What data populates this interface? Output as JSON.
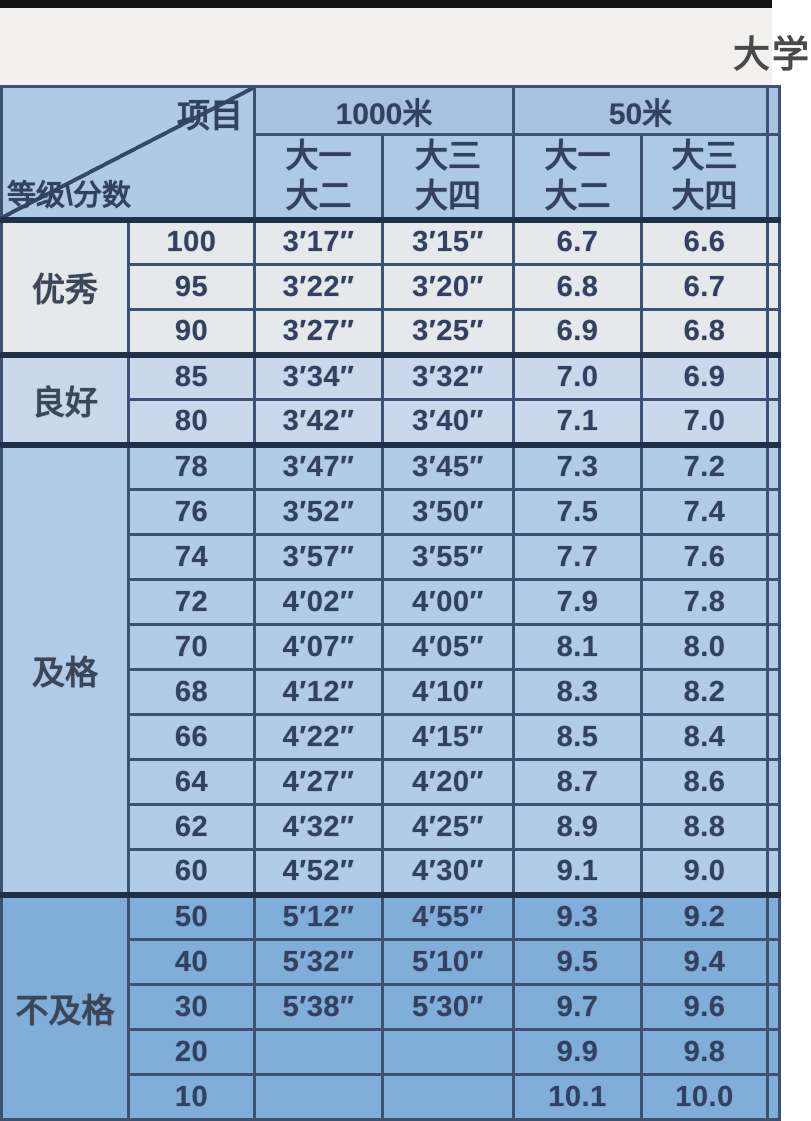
{
  "top_note": "大学",
  "colors": {
    "excellent": "#e6e9ec",
    "good": "#c9d8ea",
    "pass": "#b2cbe6",
    "fail": "#81add9",
    "header": "#aec9e5",
    "border": "#3d5273",
    "text": "#31415f"
  },
  "table": {
    "corner_top": "项目",
    "corner_bottom": "等级\\分数",
    "groups": [
      {
        "label": "1000米",
        "subcols": [
          "大一\n大二",
          "大三\n大四"
        ]
      },
      {
        "label": "50米",
        "subcols": [
          "大一\n大二",
          "大三\n大四"
        ]
      }
    ],
    "sections": [
      {
        "grade": "优秀",
        "tone": "excellent",
        "rows": [
          {
            "score": "100",
            "cells": [
              "3′17″",
              "3′15″",
              "6.7",
              "6.6"
            ]
          },
          {
            "score": "95",
            "cells": [
              "3′22″",
              "3′20″",
              "6.8",
              "6.7"
            ]
          },
          {
            "score": "90",
            "cells": [
              "3′27″",
              "3′25″",
              "6.9",
              "6.8"
            ]
          }
        ]
      },
      {
        "grade": "良好",
        "tone": "good",
        "rows": [
          {
            "score": "85",
            "cells": [
              "3′34″",
              "3′32″",
              "7.0",
              "6.9"
            ]
          },
          {
            "score": "80",
            "cells": [
              "3′42″",
              "3′40″",
              "7.1",
              "7.0"
            ]
          }
        ]
      },
      {
        "grade": "及格",
        "tone": "pass",
        "rows": [
          {
            "score": "78",
            "cells": [
              "3′47″",
              "3′45″",
              "7.3",
              "7.2"
            ]
          },
          {
            "score": "76",
            "cells": [
              "3′52″",
              "3′50″",
              "7.5",
              "7.4"
            ]
          },
          {
            "score": "74",
            "cells": [
              "3′57″",
              "3′55″",
              "7.7",
              "7.6"
            ]
          },
          {
            "score": "72",
            "cells": [
              "4′02″",
              "4′00″",
              "7.9",
              "7.8"
            ]
          },
          {
            "score": "70",
            "cells": [
              "4′07″",
              "4′05″",
              "8.1",
              "8.0"
            ]
          },
          {
            "score": "68",
            "cells": [
              "4′12″",
              "4′10″",
              "8.3",
              "8.2"
            ]
          },
          {
            "score": "66",
            "cells": [
              "4′22″",
              "4′15″",
              "8.5",
              "8.4"
            ]
          },
          {
            "score": "64",
            "cells": [
              "4′27″",
              "4′20″",
              "8.7",
              "8.6"
            ]
          },
          {
            "score": "62",
            "cells": [
              "4′32″",
              "4′25″",
              "8.9",
              "8.8"
            ]
          },
          {
            "score": "60",
            "cells": [
              "4′52″",
              "4′30″",
              "9.1",
              "9.0"
            ]
          }
        ]
      },
      {
        "grade": "不及格",
        "tone": "fail",
        "rows": [
          {
            "score": "50",
            "cells": [
              "5′12″",
              "4′55″",
              "9.3",
              "9.2"
            ]
          },
          {
            "score": "40",
            "cells": [
              "5′32″",
              "5′10″",
              "9.5",
              "9.4"
            ]
          },
          {
            "score": "30",
            "cells": [
              "5′38″",
              "5′30″",
              "9.7",
              "9.6"
            ]
          },
          {
            "score": "20",
            "cells": [
              "",
              "",
              "9.9",
              "9.8"
            ]
          },
          {
            "score": "10",
            "cells": [
              "",
              "",
              "10.1",
              "10.0"
            ]
          }
        ]
      }
    ]
  }
}
